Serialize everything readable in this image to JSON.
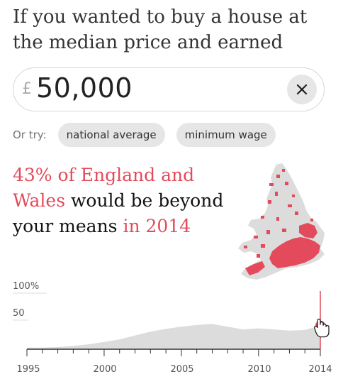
{
  "heading": {
    "text": "If you wanted to buy a house at the median price and earned"
  },
  "income": {
    "currency": "£",
    "value": "50,000"
  },
  "suggestions": {
    "label": "Or try:",
    "options": [
      "national average",
      "minimum wage"
    ]
  },
  "result": {
    "percent_region": "43% of England and Wales",
    "middle": " would be beyond your means ",
    "year_phrase": "in 2014"
  },
  "map": {
    "highlight_color": "#e34a5b",
    "base_color": "#dcdcdc"
  },
  "chart_data": {
    "type": "area",
    "x": [
      1995,
      1996,
      1997,
      1998,
      1999,
      2000,
      2001,
      2002,
      2003,
      2004,
      2005,
      2006,
      2007,
      2008,
      2009,
      2010,
      2011,
      2012,
      2013,
      2014
    ],
    "values": [
      3,
      3,
      4,
      6,
      9,
      13,
      18,
      25,
      32,
      37,
      41,
      44,
      46,
      41,
      36,
      38,
      36,
      34,
      35,
      43
    ],
    "ylim": [
      0,
      100
    ],
    "y_ticks": [
      "100%",
      "50"
    ],
    "x_ticks": [
      "1995",
      "2000",
      "2005",
      "2010",
      "2014"
    ],
    "highlight_year": 2014,
    "fill_color": "#dcdcdc",
    "marker_color": "#e34a5b"
  }
}
